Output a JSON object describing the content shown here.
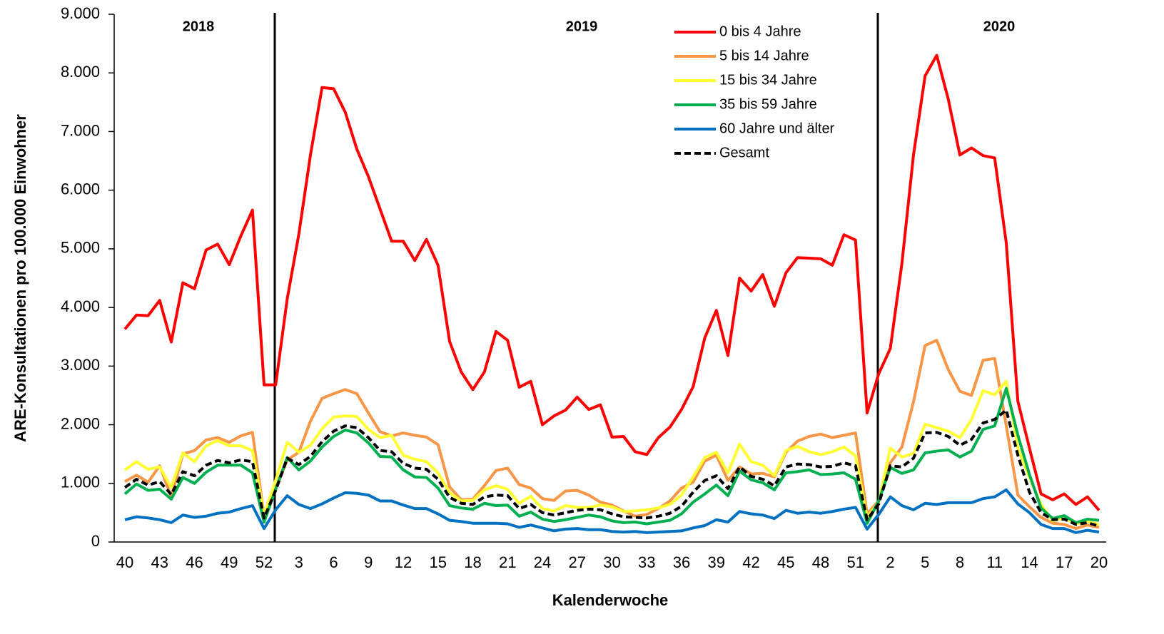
{
  "chart_data": {
    "type": "line",
    "y_label": "ARE-Konsultationen pro 100.000 Einwohner",
    "x_label": "Kalenderwoche",
    "annotations": [
      "2018",
      "2019",
      "2020"
    ],
    "categories": [
      "40",
      null,
      null,
      "43",
      null,
      null,
      "46",
      null,
      null,
      "49",
      null,
      null,
      "52",
      null,
      null,
      "3",
      null,
      null,
      "6",
      null,
      null,
      "9",
      null,
      null,
      "12",
      null,
      null,
      "15",
      null,
      null,
      "18",
      null,
      null,
      "21",
      null,
      null,
      "24",
      null,
      null,
      "27",
      null,
      null,
      "30",
      null,
      null,
      "33",
      null,
      null,
      "36",
      null,
      null,
      "39",
      null,
      null,
      "42",
      null,
      null,
      "45",
      null,
      null,
      "48",
      null,
      null,
      "51",
      null,
      null,
      "2",
      null,
      null,
      "5",
      null,
      null,
      "8",
      null,
      null,
      "11",
      null,
      null,
      "14",
      null,
      null,
      "17",
      null,
      null,
      "20"
    ],
    "ylim": [
      0,
      9000
    ],
    "yticks": [
      0,
      {
        "value": 1000,
        "label": "1.000"
      },
      {
        "value": 2000,
        "label": "2.000"
      },
      {
        "value": 3000,
        "label": "3.000"
      },
      {
        "value": 4000,
        "label": "4.000"
      },
      {
        "value": 5000,
        "label": "5.000"
      },
      {
        "value": 6000,
        "label": "6.000"
      },
      {
        "value": 7000,
        "label": "7.000"
      },
      {
        "value": 8000,
        "label": "8.000"
      },
      {
        "value": 9000,
        "label": "9.000"
      }
    ],
    "series": [
      {
        "name": "0 bis 4 Jahre",
        "color": "#ff0000",
        "values": [
          3630,
          3870,
          3860,
          4120,
          3410,
          4420,
          4320,
          4980,
          5080,
          4730,
          5220,
          5660,
          2680,
          2680,
          4150,
          5250,
          6600,
          7750,
          7730,
          7330,
          6700,
          6230,
          5680,
          5130,
          5130,
          4800,
          5160,
          4720,
          3420,
          2900,
          2600,
          2900,
          3590,
          3440,
          2640,
          2740,
          2000,
          2150,
          2250,
          2470,
          2260,
          2340,
          1790,
          1800,
          1540,
          1490,
          1780,
          1960,
          2260,
          2650,
          3480,
          3950,
          3180,
          4500,
          4280,
          4560,
          4020,
          4590,
          4850,
          4840,
          4830,
          4720,
          5240,
          5150,
          2200,
          2870,
          3300,
          4750,
          6600,
          7950,
          8300,
          7550,
          6600,
          6720,
          6590,
          6550,
          5100,
          2400,
          1600,
          820,
          720,
          820,
          640,
          770,
          540
        ]
      },
      {
        "name": "5 bis 14 Jahre",
        "color": "#f79646",
        "values": [
          1030,
          1140,
          1020,
          1300,
          770,
          1500,
          1560,
          1740,
          1780,
          1700,
          1810,
          1870,
          450,
          900,
          1400,
          1530,
          2060,
          2450,
          2530,
          2600,
          2530,
          2200,
          1880,
          1810,
          1860,
          1820,
          1790,
          1660,
          940,
          720,
          730,
          960,
          1220,
          1260,
          980,
          920,
          740,
          710,
          870,
          880,
          800,
          680,
          630,
          530,
          440,
          470,
          570,
          700,
          920,
          1020,
          1380,
          1480,
          1050,
          1280,
          1160,
          1170,
          1110,
          1530,
          1720,
          1800,
          1840,
          1780,
          1820,
          1860,
          480,
          700,
          1350,
          1620,
          2390,
          3350,
          3440,
          2940,
          2570,
          2500,
          3100,
          3130,
          1980,
          800,
          600,
          420,
          320,
          300,
          230,
          290,
          250
        ]
      },
      {
        "name": "15 bis 34 Jahre",
        "color": "#ffff33",
        "values": [
          1230,
          1370,
          1240,
          1280,
          930,
          1520,
          1370,
          1640,
          1730,
          1640,
          1640,
          1560,
          460,
          1050,
          1700,
          1530,
          1650,
          1930,
          2130,
          2150,
          2140,
          1920,
          1780,
          1820,
          1480,
          1410,
          1370,
          1180,
          840,
          700,
          710,
          890,
          960,
          900,
          660,
          780,
          570,
          530,
          620,
          590,
          590,
          630,
          600,
          520,
          530,
          550,
          580,
          640,
          800,
          1110,
          1440,
          1530,
          1180,
          1670,
          1370,
          1310,
          1130,
          1560,
          1630,
          1540,
          1490,
          1540,
          1620,
          1470,
          420,
          680,
          1600,
          1450,
          1510,
          2010,
          1950,
          1890,
          1780,
          2090,
          2580,
          2510,
          2740,
          1600,
          1100,
          640,
          360,
          410,
          310,
          350,
          300
        ]
      },
      {
        "name": "35 bis 59 Jahre",
        "color": "#00b050",
        "values": [
          820,
          990,
          880,
          900,
          730,
          1100,
          1000,
          1190,
          1310,
          1310,
          1310,
          1180,
          340,
          900,
          1440,
          1230,
          1380,
          1620,
          1800,
          1910,
          1860,
          1690,
          1460,
          1450,
          1230,
          1110,
          1100,
          920,
          620,
          580,
          560,
          660,
          620,
          630,
          440,
          510,
          390,
          350,
          380,
          420,
          460,
          430,
          360,
          330,
          340,
          310,
          340,
          370,
          480,
          680,
          820,
          970,
          790,
          1210,
          1060,
          1010,
          890,
          1180,
          1200,
          1230,
          1150,
          1160,
          1180,
          1070,
          320,
          700,
          1270,
          1170,
          1230,
          1520,
          1550,
          1570,
          1450,
          1550,
          1920,
          1980,
          2620,
          1820,
          1150,
          580,
          400,
          450,
          330,
          390,
          370
        ]
      },
      {
        "name": "60 Jahre und älter",
        "color": "#0070c0",
        "values": [
          380,
          430,
          410,
          380,
          330,
          460,
          420,
          440,
          490,
          510,
          570,
          620,
          230,
          550,
          790,
          640,
          570,
          650,
          750,
          840,
          830,
          800,
          700,
          700,
          630,
          570,
          570,
          480,
          370,
          350,
          320,
          320,
          320,
          310,
          250,
          290,
          240,
          190,
          220,
          230,
          210,
          210,
          180,
          170,
          180,
          160,
          170,
          180,
          190,
          240,
          280,
          380,
          340,
          520,
          480,
          460,
          400,
          540,
          490,
          510,
          490,
          520,
          560,
          590,
          220,
          470,
          770,
          620,
          550,
          660,
          640,
          670,
          670,
          670,
          740,
          770,
          890,
          650,
          500,
          300,
          230,
          230,
          160,
          200,
          170
        ]
      },
      {
        "name": "Gesamt",
        "color": "#000000",
        "dashed": true,
        "values": [
          930,
          1070,
          970,
          1030,
          810,
          1200,
          1130,
          1310,
          1390,
          1350,
          1400,
          1370,
          410,
          880,
          1430,
          1320,
          1460,
          1710,
          1890,
          1980,
          1950,
          1780,
          1560,
          1540,
          1340,
          1260,
          1240,
          1070,
          760,
          660,
          640,
          770,
          800,
          790,
          570,
          640,
          500,
          460,
          500,
          540,
          560,
          550,
          480,
          430,
          420,
          410,
          440,
          490,
          610,
          850,
          1050,
          1130,
          910,
          1280,
          1120,
          1070,
          960,
          1280,
          1330,
          1320,
          1280,
          1290,
          1350,
          1300,
          380,
          650,
          1300,
          1280,
          1430,
          1860,
          1870,
          1800,
          1650,
          1750,
          2030,
          2090,
          2250,
          1480,
          850,
          500,
          380,
          390,
          300,
          330,
          270
        ]
      }
    ]
  }
}
